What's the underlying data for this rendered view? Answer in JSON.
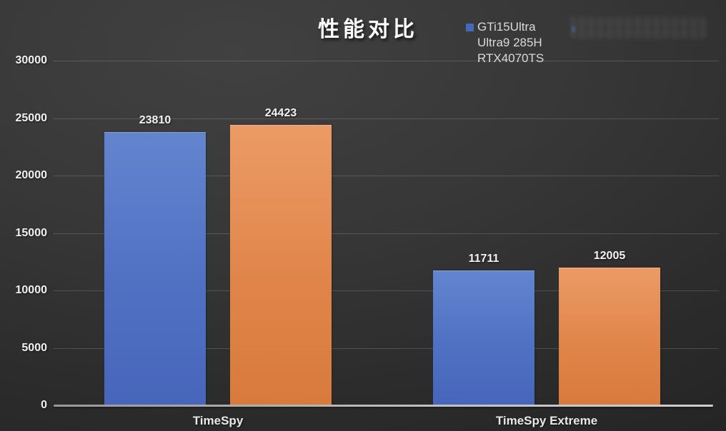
{
  "title": "性能对比",
  "legend": {
    "entries": [
      {
        "label_lines": [
          "GTi15Ultra",
          "Ultra9 285H",
          "RTX4070TS"
        ],
        "color": "#4169C0"
      }
    ]
  },
  "chart_data": {
    "type": "bar",
    "title": "性能对比",
    "categories": [
      "TimeSpy",
      "TimeSpy Extreme"
    ],
    "series": [
      {
        "name": "GTi15Ultra Ultra9 285H RTX4070TS",
        "color": "#5071C3",
        "gradient_top": "#6385CF",
        "gradient_bottom": "#4766BB",
        "values": [
          23810,
          11711
        ]
      },
      {
        "name": "",
        "color": "#E0854A",
        "gradient_top": "#EC9B66",
        "gradient_bottom": "#D87A3C",
        "values": [
          24423,
          12005
        ]
      }
    ],
    "data_labels_shown": true,
    "xlabel": "",
    "ylabel": "",
    "ylim": [
      0,
      30000
    ],
    "yticks": [
      0,
      5000,
      10000,
      15000,
      20000,
      25000,
      30000
    ],
    "grid": true,
    "legend_position": "top",
    "background": "dark-gray-gradient",
    "gridline_color": "#5a5a5a",
    "axis_line_color": "#bdbdbd",
    "text_color": "#f0f0f0"
  }
}
